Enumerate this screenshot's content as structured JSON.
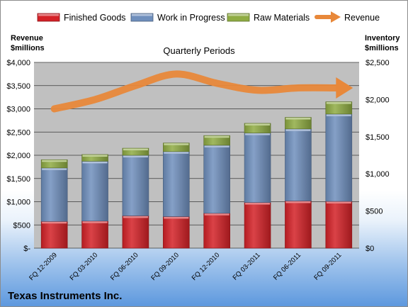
{
  "chart_data": {
    "type": "bar",
    "title": "Quarterly Periods",
    "company": "Texas Instruments Inc.",
    "y_left_label": [
      "Revenue",
      "$millions"
    ],
    "y_right_label": [
      "Inventory",
      "$millions"
    ],
    "y_left_range": [
      0,
      4000
    ],
    "y_left_ticks": [
      "$-",
      "$500",
      "$1,000",
      "$1,500",
      "$2,000",
      "$2,500",
      "$3,000",
      "$3,500",
      "$4,000"
    ],
    "y_right_range": [
      0,
      2500
    ],
    "y_right_ticks": [
      "$0",
      "$500",
      "$1,000",
      "$1,500",
      "$2,000",
      "$2,500"
    ],
    "categories": [
      "FQ 12-2009",
      "FQ 03-2010",
      "FQ 06-2010",
      "FQ 09-2010",
      "FQ 12-2010",
      "FQ 03-2011",
      "FQ 06-2011",
      "FQ 09-2011"
    ],
    "stacked_series": [
      {
        "name": "Finished Goods",
        "axis": "right",
        "color": "#d42127",
        "values": [
          360,
          365,
          435,
          425,
          470,
          615,
          635,
          630
        ]
      },
      {
        "name": "Work in Progress",
        "axis": "right",
        "color": "#6f8fbd",
        "values": [
          720,
          805,
          815,
          875,
          915,
          935,
          970,
          1175
        ]
      },
      {
        "name": "Raw Materials",
        "axis": "right",
        "color": "#8fac43",
        "values": [
          110,
          90,
          95,
          115,
          130,
          130,
          155,
          165
        ]
      }
    ],
    "line_series": {
      "name": "Revenue",
      "axis": "left",
      "color": "#e8883a",
      "values": [
        3000,
        3200,
        3500,
        3750,
        3550,
        3400,
        3450,
        3450
      ]
    },
    "grid": true,
    "legend_position": "top"
  }
}
